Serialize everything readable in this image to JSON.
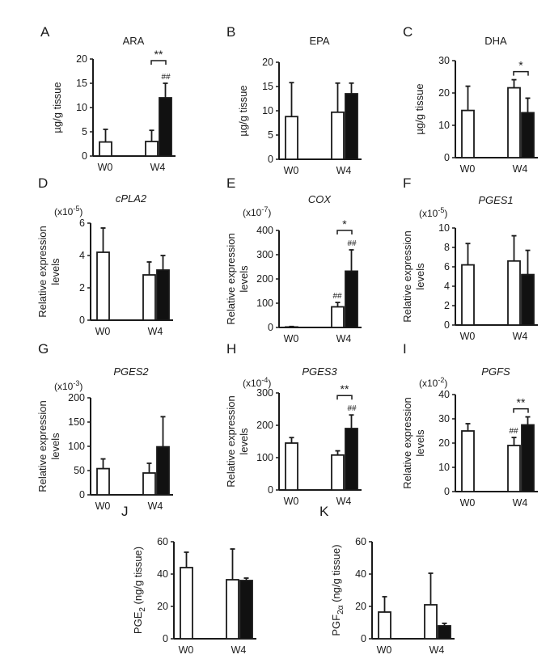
{
  "chart_data": [
    {
      "type": "bar",
      "panel": "A",
      "title": "ARA",
      "title_italic": false,
      "ylabel": [
        "µg/g tissue"
      ],
      "scale_base": "",
      "scale_exp": "",
      "categories": [
        "W0",
        "W4"
      ],
      "ylim": [
        0,
        20
      ],
      "yticks": [
        0,
        5,
        10,
        15,
        20
      ],
      "series": [
        {
          "fill": "#ffffff",
          "values": [
            2.9,
            3.0
          ],
          "err_top": [
            5.5,
            5.3
          ]
        },
        {
          "fill": "#111111",
          "values": [
            null,
            12.0
          ],
          "err_top": [
            null,
            15.0
          ]
        }
      ],
      "annotations": {
        "bracket": "**",
        "hash_white": "",
        "hash_black": "##"
      }
    },
    {
      "type": "bar",
      "panel": "B",
      "title": "EPA",
      "title_italic": false,
      "ylabel": [
        "µg/g tissue"
      ],
      "scale_base": "",
      "scale_exp": "",
      "categories": [
        "W0",
        "W4"
      ],
      "ylim": [
        0,
        20
      ],
      "yticks": [
        0,
        5,
        10,
        15,
        20
      ],
      "series": [
        {
          "fill": "#ffffff",
          "values": [
            8.8,
            9.7
          ],
          "err_top": [
            15.8,
            15.7
          ]
        },
        {
          "fill": "#111111",
          "values": [
            null,
            13.5
          ],
          "err_top": [
            null,
            15.7
          ]
        }
      ],
      "annotations": {
        "bracket": "",
        "hash_white": "",
        "hash_black": ""
      }
    },
    {
      "type": "bar",
      "panel": "C",
      "title": "DHA",
      "title_italic": false,
      "ylabel": [
        "µg/g tissue"
      ],
      "scale_base": "",
      "scale_exp": "",
      "categories": [
        "W0",
        "W4"
      ],
      "ylim": [
        0,
        30
      ],
      "yticks": [
        0,
        10,
        20,
        30
      ],
      "series": [
        {
          "fill": "#ffffff",
          "values": [
            14.6,
            21.6
          ],
          "err_top": [
            22.1,
            24.1
          ]
        },
        {
          "fill": "#111111",
          "values": [
            null,
            13.9
          ],
          "err_top": [
            null,
            18.4
          ]
        }
      ],
      "annotations": {
        "bracket": "*",
        "hash_white": "",
        "hash_black": ""
      }
    },
    {
      "type": "bar",
      "panel": "D",
      "title": "cPLA2",
      "title_italic": true,
      "ylabel": [
        "Relative expression",
        "levels"
      ],
      "scale_base": "(x10",
      "scale_exp": "-5",
      "categories": [
        "W0",
        "W4"
      ],
      "ylim": [
        0,
        6
      ],
      "yticks": [
        0,
        2,
        4,
        6
      ],
      "series": [
        {
          "fill": "#ffffff",
          "values": [
            4.2,
            2.8
          ],
          "err_top": [
            5.7,
            3.6
          ]
        },
        {
          "fill": "#111111",
          "values": [
            null,
            3.1
          ],
          "err_top": [
            null,
            4.0
          ]
        }
      ],
      "annotations": {
        "bracket": "",
        "hash_white": "",
        "hash_black": ""
      }
    },
    {
      "type": "bar",
      "panel": "E",
      "title": "COX",
      "title_italic": true,
      "ylabel": [
        "Relative expression",
        "levels"
      ],
      "scale_base": "(x10",
      "scale_exp": "-7",
      "categories": [
        "W0",
        "W4"
      ],
      "ylim": [
        0,
        400
      ],
      "yticks": [
        0,
        100,
        200,
        300,
        400
      ],
      "series": [
        {
          "fill": "#ffffff",
          "values": [
            2,
            85
          ],
          "err_top": [
            4,
            103
          ]
        },
        {
          "fill": "#111111",
          "values": [
            null,
            232
          ],
          "err_top": [
            null,
            320
          ]
        }
      ],
      "annotations": {
        "bracket": "*",
        "hash_white": "##",
        "hash_black": "##"
      }
    },
    {
      "type": "bar",
      "panel": "F",
      "title": "PGES1",
      "title_italic": true,
      "ylabel": [
        "Relative expression",
        "levels"
      ],
      "scale_base": "(x10",
      "scale_exp": "-5",
      "categories": [
        "W0",
        "W4"
      ],
      "ylim": [
        0,
        10
      ],
      "yticks": [
        0,
        2,
        4,
        6,
        8,
        10
      ],
      "series": [
        {
          "fill": "#ffffff",
          "values": [
            6.2,
            6.6
          ],
          "err_top": [
            8.4,
            9.2
          ]
        },
        {
          "fill": "#111111",
          "values": [
            null,
            5.2
          ],
          "err_top": [
            null,
            7.7
          ]
        }
      ],
      "annotations": {
        "bracket": "",
        "hash_white": "",
        "hash_black": ""
      }
    },
    {
      "type": "bar",
      "panel": "G",
      "title": "PGES2",
      "title_italic": true,
      "ylabel": [
        "Relative expression",
        "levels"
      ],
      "scale_base": "(x10",
      "scale_exp": "-3",
      "categories": [
        "W0",
        "W4"
      ],
      "ylim": [
        0,
        200
      ],
      "yticks": [
        0,
        50,
        100,
        150,
        200
      ],
      "series": [
        {
          "fill": "#ffffff",
          "values": [
            54,
            45
          ],
          "err_top": [
            74,
            65
          ]
        },
        {
          "fill": "#111111",
          "values": [
            null,
            99
          ],
          "err_top": [
            null,
            161
          ]
        }
      ],
      "annotations": {
        "bracket": "",
        "hash_white": "",
        "hash_black": ""
      }
    },
    {
      "type": "bar",
      "panel": "H",
      "title": "PGES3",
      "title_italic": true,
      "ylabel": [
        "Relative expression",
        "levels"
      ],
      "scale_base": "(x10",
      "scale_exp": "-4",
      "categories": [
        "W0",
        "W4"
      ],
      "ylim": [
        0,
        300
      ],
      "yticks": [
        0,
        100,
        200,
        300
      ],
      "series": [
        {
          "fill": "#ffffff",
          "values": [
            145,
            108
          ],
          "err_top": [
            162,
            121
          ]
        },
        {
          "fill": "#111111",
          "values": [
            null,
            190
          ],
          "err_top": [
            null,
            232
          ]
        }
      ],
      "annotations": {
        "bracket": "**",
        "hash_white": "",
        "hash_black": "##"
      }
    },
    {
      "type": "bar",
      "panel": "I",
      "title": "PGFS",
      "title_italic": true,
      "ylabel": [
        "Relative expression",
        "levels"
      ],
      "scale_base": "(x10",
      "scale_exp": "-2",
      "categories": [
        "W0",
        "W4"
      ],
      "ylim": [
        0,
        40
      ],
      "yticks": [
        0,
        10,
        20,
        30,
        40
      ],
      "series": [
        {
          "fill": "#ffffff",
          "values": [
            25,
            19
          ],
          "err_top": [
            28,
            22.3
          ]
        },
        {
          "fill": "#111111",
          "values": [
            null,
            27.5
          ],
          "err_top": [
            null,
            30.8
          ]
        }
      ],
      "annotations": {
        "bracket": "**",
        "hash_white": "##",
        "hash_black": ""
      }
    },
    {
      "type": "bar",
      "panel": "J",
      "title": "",
      "title_italic": false,
      "ylabel_parts": [
        "PGE",
        "2",
        " (ng/g tissue)"
      ],
      "scale_base": "",
      "scale_exp": "",
      "categories": [
        "W0",
        "W4"
      ],
      "ylim": [
        0,
        60
      ],
      "yticks": [
        0,
        20,
        40,
        60
      ],
      "series": [
        {
          "fill": "#ffffff",
          "values": [
            44,
            36.5
          ],
          "err_top": [
            53.5,
            55.5
          ]
        },
        {
          "fill": "#111111",
          "values": [
            null,
            36
          ],
          "err_top": [
            null,
            37.5
          ]
        }
      ],
      "annotations": {
        "bracket": "",
        "hash_white": "",
        "hash_black": ""
      }
    },
    {
      "type": "bar",
      "panel": "K",
      "title": "",
      "title_italic": false,
      "ylabel_parts": [
        "PGF",
        "2α",
        " (ng/g tissue)"
      ],
      "scale_base": "",
      "scale_exp": "",
      "categories": [
        "W0",
        "W4"
      ],
      "ylim": [
        0,
        60
      ],
      "yticks": [
        0,
        20,
        40,
        60
      ],
      "series": [
        {
          "fill": "#ffffff",
          "values": [
            16.5,
            21
          ],
          "err_top": [
            26,
            40.5
          ]
        },
        {
          "fill": "#111111",
          "values": [
            null,
            8
          ],
          "err_top": [
            null,
            9.5
          ]
        }
      ],
      "annotations": {
        "bracket": "",
        "hash_white": "",
        "hash_black": ""
      }
    }
  ]
}
